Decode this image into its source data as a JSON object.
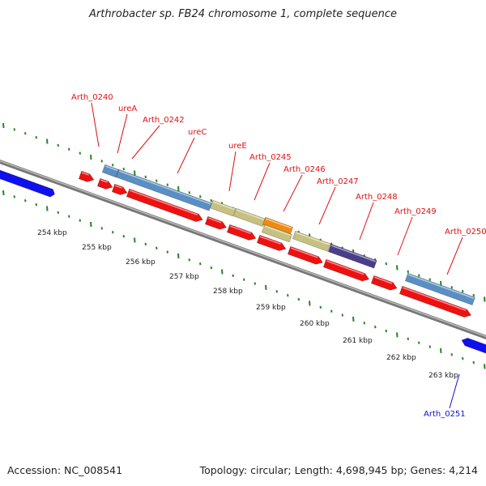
{
  "title": "Arthrobacter sp. FB24 chromosome 1, complete sequence",
  "footer": {
    "accession": "Accession: NC_008541",
    "summary": "Topology: circular; Length: 4,698,945 bp; Genes: 4,214"
  },
  "colors": {
    "backbone": "#888888",
    "tick_green": "#228822",
    "cds_red": "#ee1111",
    "gene_steelblue": "#5a8fc4",
    "gene_khaki": "#c8c080",
    "gene_orange": "#f08a10",
    "gene_purple": "#4a3e8a",
    "other_strand_blue": "#1010ee",
    "label_red": "#dd1111",
    "label_blue": "#1111cc"
  },
  "kbp_labels": [
    "254 kbp",
    "255 kbp",
    "256 kbp",
    "257 kbp",
    "258 kbp",
    "259 kbp",
    "260 kbp",
    "261 kbp",
    "262 kbp",
    "263 kbp"
  ],
  "gene_labels": [
    {
      "text": "Arth_0240",
      "color": "red"
    },
    {
      "text": "ureA",
      "color": "red"
    },
    {
      "text": "Arth_0242",
      "color": "red"
    },
    {
      "text": "ureC",
      "color": "red"
    },
    {
      "text": "ureE",
      "color": "red"
    },
    {
      "text": "Arth_0245",
      "color": "red"
    },
    {
      "text": "Arth_0246",
      "color": "red"
    },
    {
      "text": "Arth_0247",
      "color": "red"
    },
    {
      "text": "Arth_0248",
      "color": "red"
    },
    {
      "text": "Arth_0249",
      "color": "red"
    },
    {
      "text": "Arth_0250",
      "color": "red"
    },
    {
      "text": "Arth_0251",
      "color": "blue"
    }
  ]
}
